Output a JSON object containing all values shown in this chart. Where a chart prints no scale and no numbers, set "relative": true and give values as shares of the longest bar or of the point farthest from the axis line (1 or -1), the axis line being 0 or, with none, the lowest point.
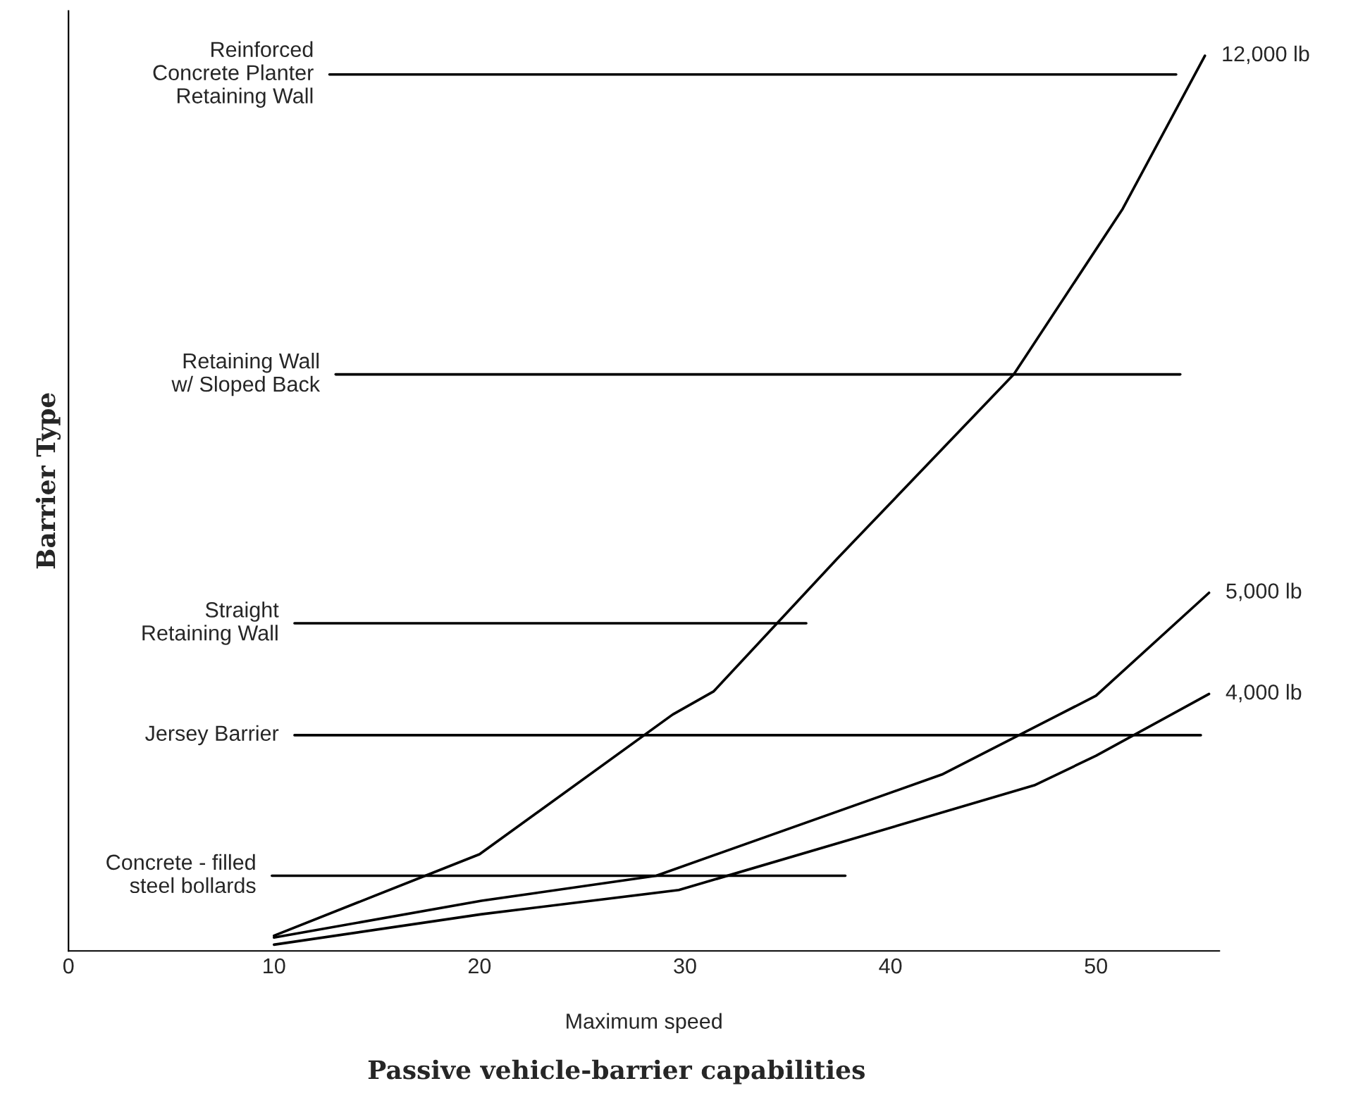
{
  "chart_data": {
    "type": "line",
    "relative": true,
    "title": "Passive vehicle-barrier capabilities",
    "xlabel": "Maximum speed",
    "ylabel": "Barrier Type",
    "xlim": [
      0,
      56
    ],
    "xticks": [
      0,
      10,
      20,
      30,
      40,
      50
    ],
    "tick_labels": "x",
    "grid": false,
    "legend": false,
    "series": [
      {
        "name": "12,000 lb",
        "color": "#000000",
        "x": [
          10,
          20,
          29.4,
          31.4,
          37.4,
          46.0,
          51.3,
          55.3
        ],
        "values": [
          0.017,
          0.108,
          0.264,
          0.29,
          0.438,
          0.644,
          0.829,
          1.0
        ]
      },
      {
        "name": "5,000 lb",
        "color": "#000000",
        "x": [
          10,
          20.1,
          28.6,
          42.5,
          50,
          55.5
        ],
        "values": [
          0.015,
          0.056,
          0.084,
          0.197,
          0.285,
          0.4
        ]
      },
      {
        "name": "4,000 lb",
        "color": "#000000",
        "x": [
          10,
          20.1,
          29.7,
          47.0,
          50,
          55.5
        ],
        "values": [
          0.007,
          0.041,
          0.068,
          0.185,
          0.218,
          0.287
        ]
      },
      {
        "color": "#000000",
        "x": [
          12.7,
          53.9
        ],
        "values": [
          0.979,
          0.979
        ]
      },
      {
        "color": "#000000",
        "x": [
          13.0,
          54.1
        ],
        "values": [
          0.644,
          0.644
        ]
      },
      {
        "color": "#000000",
        "x": [
          11.0,
          35.9
        ],
        "values": [
          0.366,
          0.366
        ]
      },
      {
        "color": "#000000",
        "x": [
          11.0,
          55.1
        ],
        "values": [
          0.241,
          0.241
        ]
      },
      {
        "color": "#000000",
        "x": [
          9.9,
          37.8
        ],
        "values": [
          0.084,
          0.084
        ]
      }
    ],
    "annotations": [
      {
        "text": "Reinforced\nConcrete Planter\nRetaining Wall",
        "x": 12.7,
        "y": 0.979
      },
      {
        "text": "Retaining Wall\nw/ Sloped Back",
        "x": 13.0,
        "y": 0.644
      },
      {
        "text": "Straight\nRetaining Wall",
        "x": 11.0,
        "y": 0.366
      },
      {
        "text": "Jersey Barrier",
        "x": 11.0,
        "y": 0.241
      },
      {
        "text": "Concrete - filled\nsteel bollards",
        "x": 9.9,
        "y": 0.084
      }
    ]
  }
}
